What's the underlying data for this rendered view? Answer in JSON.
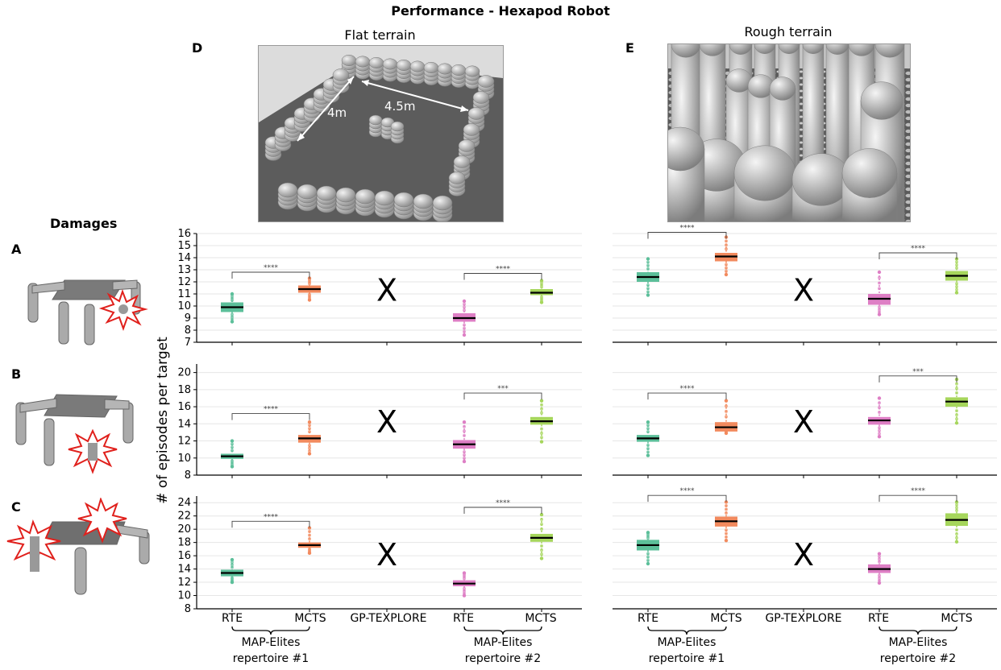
{
  "figure": {
    "title": "Performance - Hexapod Robot",
    "ylabel": "# of episodes per target",
    "damages_heading": "Damages",
    "columns": [
      {
        "letter": "D",
        "title": "Flat terrain",
        "annotations": [
          "4m",
          "4.5m"
        ]
      },
      {
        "letter": "E",
        "title": "Rough terrain"
      }
    ],
    "rows": [
      {
        "letter": "A"
      },
      {
        "letter": "B"
      },
      {
        "letter": "C"
      }
    ],
    "xticks": [
      "RTE",
      "MCTS",
      "GP-TEXPLORE",
      "RTE",
      "MCTS"
    ],
    "groups": [
      [
        "MAP-Elites",
        "repertoire #1"
      ],
      [
        "MAP-Elites",
        "repertoire #2"
      ]
    ],
    "missing_marker": "X"
  },
  "colors": {
    "rte1": "#5cbf9a",
    "mcts1": "#f28a5e",
    "rte2": "#de7fc5",
    "mcts2": "#a6d65c",
    "grid": "#e6e6e6"
  },
  "chart_data": [
    {
      "type": "box",
      "terrain": "Flat terrain",
      "damage": "A",
      "ylim": [
        7,
        16
      ],
      "yticks": [
        7,
        8,
        9,
        10,
        11,
        12,
        13,
        14,
        15,
        16
      ],
      "boxes": [
        {
          "key": "rte1",
          "median": 9.9,
          "q1": 9.5,
          "q3": 10.3,
          "min": 8.7,
          "max": 11.0
        },
        {
          "key": "mcts1",
          "median": 11.4,
          "q1": 11.1,
          "q3": 11.7,
          "min": 10.5,
          "max": 12.3
        },
        null,
        {
          "key": "rte2",
          "median": 9.0,
          "q1": 8.7,
          "q3": 9.4,
          "min": 7.6,
          "max": 10.4
        },
        {
          "key": "mcts2",
          "median": 11.1,
          "q1": 10.9,
          "q3": 11.4,
          "min": 10.3,
          "max": 12.1
        }
      ],
      "significance": [
        {
          "from": 0,
          "to": 1,
          "label": "****",
          "level": 12.8
        },
        {
          "from": 3,
          "to": 4,
          "label": "****",
          "level": 12.7
        }
      ]
    },
    {
      "type": "box",
      "terrain": "Rough terrain",
      "damage": "A",
      "ylim": [
        7,
        16
      ],
      "yticks": [
        7,
        8,
        9,
        10,
        11,
        12,
        13,
        14,
        15,
        16
      ],
      "boxes": [
        {
          "key": "rte1",
          "median": 12.4,
          "q1": 12.0,
          "q3": 12.8,
          "min": 10.9,
          "max": 13.9
        },
        {
          "key": "mcts1",
          "median": 14.1,
          "q1": 13.7,
          "q3": 14.4,
          "min": 12.6,
          "max": 15.7
        },
        null,
        {
          "key": "rte2",
          "median": 10.6,
          "q1": 10.1,
          "q3": 11.0,
          "min": 9.3,
          "max": 12.8
        },
        {
          "key": "mcts2",
          "median": 12.5,
          "q1": 12.1,
          "q3": 12.9,
          "min": 11.1,
          "max": 13.9
        }
      ],
      "significance": [
        {
          "from": 0,
          "to": 1,
          "label": "****",
          "level": 16.1
        },
        {
          "from": 3,
          "to": 4,
          "label": "****",
          "level": 14.4
        }
      ]
    },
    {
      "type": "box",
      "terrain": "Flat terrain",
      "damage": "B",
      "ylim": [
        8,
        21
      ],
      "yticks": [
        8,
        10,
        12,
        14,
        16,
        18,
        20
      ],
      "boxes": [
        {
          "key": "rte1",
          "median": 10.2,
          "q1": 9.9,
          "q3": 10.5,
          "min": 9.0,
          "max": 12.0
        },
        {
          "key": "mcts1",
          "median": 12.3,
          "q1": 11.8,
          "q3": 12.7,
          "min": 10.5,
          "max": 14.2
        },
        null,
        {
          "key": "rte2",
          "median": 11.6,
          "q1": 11.1,
          "q3": 12.1,
          "min": 9.6,
          "max": 14.2
        },
        {
          "key": "mcts2",
          "median": 14.3,
          "q1": 13.9,
          "q3": 14.8,
          "min": 11.9,
          "max": 16.7
        }
      ],
      "significance": [
        {
          "from": 0,
          "to": 1,
          "label": "****",
          "level": 15.2
        },
        {
          "from": 3,
          "to": 4,
          "label": "***",
          "level": 17.6
        }
      ]
    },
    {
      "type": "box",
      "terrain": "Rough terrain",
      "damage": "B",
      "ylim": [
        8,
        21
      ],
      "yticks": [
        8,
        10,
        12,
        14,
        16,
        18,
        20
      ],
      "boxes": [
        {
          "key": "rte1",
          "median": 12.3,
          "q1": 11.9,
          "q3": 12.7,
          "min": 10.3,
          "max": 14.2
        },
        {
          "key": "mcts1",
          "median": 13.6,
          "q1": 13.1,
          "q3": 14.2,
          "min": 12.9,
          "max": 16.7
        },
        null,
        {
          "key": "rte2",
          "median": 14.4,
          "q1": 13.9,
          "q3": 14.8,
          "min": 12.5,
          "max": 17.0
        },
        {
          "key": "mcts2",
          "median": 16.6,
          "q1": 16.0,
          "q3": 17.1,
          "min": 14.1,
          "max": 19.2
        }
      ],
      "significance": [
        {
          "from": 0,
          "to": 1,
          "label": "****",
          "level": 17.6
        },
        {
          "from": 3,
          "to": 4,
          "label": "***",
          "level": 19.6
        }
      ]
    },
    {
      "type": "box",
      "terrain": "Flat terrain",
      "damage": "C",
      "ylim": [
        8,
        25
      ],
      "yticks": [
        8,
        10,
        12,
        14,
        16,
        18,
        20,
        22,
        24
      ],
      "boxes": [
        {
          "key": "rte1",
          "median": 13.4,
          "q1": 12.9,
          "q3": 13.9,
          "min": 12.0,
          "max": 15.4
        },
        {
          "key": "mcts1",
          "median": 17.6,
          "q1": 17.2,
          "q3": 18.0,
          "min": 16.4,
          "max": 20.2
        },
        null,
        {
          "key": "rte2",
          "median": 11.8,
          "q1": 11.4,
          "q3": 12.3,
          "min": 10.0,
          "max": 13.4
        },
        {
          "key": "mcts2",
          "median": 18.7,
          "q1": 18.1,
          "q3": 19.3,
          "min": 15.6,
          "max": 22.2
        }
      ],
      "significance": [
        {
          "from": 0,
          "to": 1,
          "label": "****",
          "level": 21.2
        },
        {
          "from": 3,
          "to": 4,
          "label": "****",
          "level": 23.3
        }
      ]
    },
    {
      "type": "box",
      "terrain": "Rough terrain",
      "damage": "C",
      "ylim": [
        8,
        25
      ],
      "yticks": [
        8,
        10,
        12,
        14,
        16,
        18,
        20,
        22,
        24
      ],
      "boxes": [
        {
          "key": "rte1",
          "median": 17.6,
          "q1": 16.8,
          "q3": 18.4,
          "min": 14.8,
          "max": 19.5
        },
        {
          "key": "mcts1",
          "median": 21.2,
          "q1": 20.4,
          "q3": 21.9,
          "min": 18.3,
          "max": 24.1
        },
        null,
        {
          "key": "rte2",
          "median": 14.0,
          "q1": 13.4,
          "q3": 14.7,
          "min": 11.9,
          "max": 16.3
        },
        {
          "key": "mcts2",
          "median": 21.4,
          "q1": 20.5,
          "q3": 22.4,
          "min": 18.1,
          "max": 24.1
        }
      ],
      "significance": [
        {
          "from": 0,
          "to": 1,
          "label": "****",
          "level": 25.1
        },
        {
          "from": 3,
          "to": 4,
          "label": "****",
          "level": 25.1
        }
      ]
    }
  ]
}
